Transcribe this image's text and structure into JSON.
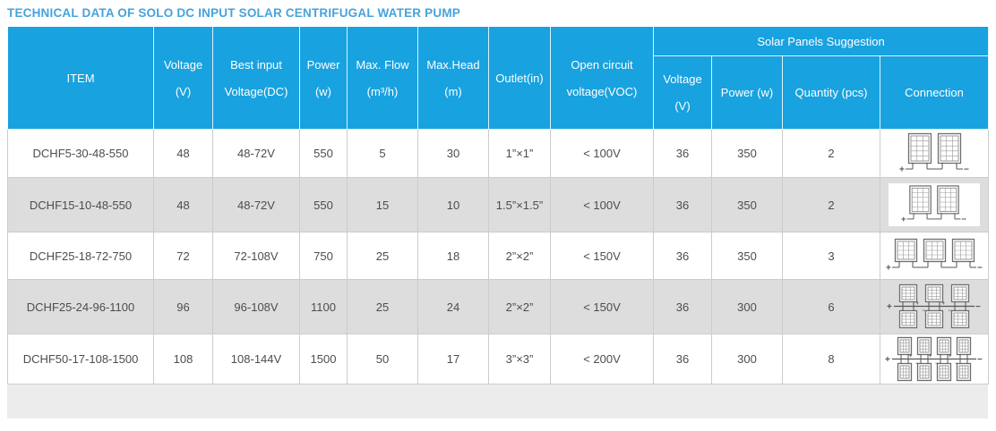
{
  "title": "TECHNICAL DATA OF SOLO DC INPUT SOLAR CENTRIFUGAL WATER PUMP",
  "colors": {
    "title_text": "#46a3db",
    "header_bg": "#18a2df",
    "header_text": "#ffffff",
    "row_alt_bg": "#dddddd",
    "body_text": "#4d4d4d",
    "footer_strip": "#ececec"
  },
  "table": {
    "headers": {
      "item": "ITEM",
      "voltage": {
        "l1": "Voltage",
        "l2": "(V)"
      },
      "best_input": {
        "l1": "Best input",
        "l2": "Voltage(DC)"
      },
      "power": {
        "l1": "Power",
        "l2": "(w)"
      },
      "max_flow": {
        "l1": "Max. Flow",
        "l2": "(m³/h)"
      },
      "max_head": {
        "l1": "Max.Head",
        "l2": "(m)"
      },
      "outlet": "Outlet(in)",
      "open_circuit": {
        "l1": "Open circuit",
        "l2": "voltage(VOC)"
      },
      "solar_group": "Solar Panels Suggestion",
      "sp_voltage": {
        "l1": "Voltage",
        "l2": "(V)"
      },
      "sp_power": "Power (w)",
      "sp_quantity": "Quantity (pcs)",
      "sp_connection": "Connection"
    },
    "rows": [
      {
        "item": "DCHF5-30-48-550",
        "voltage": "48",
        "best_input": "48-72V",
        "power": "550",
        "max_flow": "5",
        "max_head": "30",
        "outlet": "1”×1”",
        "open_circuit": "< 100V",
        "sp_voltage": "36",
        "sp_power": "350",
        "sp_quantity": "2",
        "connection": {
          "icon": "solar-array-2-series-icon",
          "panels": 2,
          "rows": 1,
          "cols": 2,
          "white_bg": false
        }
      },
      {
        "item": "DCHF15-10-48-550",
        "voltage": "48",
        "best_input": "48-72V",
        "power": "550",
        "max_flow": "15",
        "max_head": "10",
        "outlet": "1.5”×1.5”",
        "open_circuit": "< 100V",
        "sp_voltage": "36",
        "sp_power": "350",
        "sp_quantity": "2",
        "connection": {
          "icon": "solar-array-2-series-icon",
          "panels": 2,
          "rows": 1,
          "cols": 2,
          "white_bg": true
        }
      },
      {
        "item": "DCHF25-18-72-750",
        "voltage": "72",
        "best_input": "72-108V",
        "power": "750",
        "max_flow": "25",
        "max_head": "18",
        "outlet": "2”×2”",
        "open_circuit": "< 150V",
        "sp_voltage": "36",
        "sp_power": "350",
        "sp_quantity": "3",
        "connection": {
          "icon": "solar-array-3-series-icon",
          "panels": 3,
          "rows": 1,
          "cols": 3,
          "white_bg": false
        }
      },
      {
        "item": "DCHF25-24-96-1100",
        "voltage": "96",
        "best_input": "96-108V",
        "power": "1100",
        "max_flow": "25",
        "max_head": "24",
        "outlet": "2”×2”",
        "open_circuit": "< 150V",
        "sp_voltage": "36",
        "sp_power": "300",
        "sp_quantity": "6",
        "connection": {
          "icon": "solar-array-6-series-parallel-icon",
          "panels": 6,
          "rows": 2,
          "cols": 3,
          "white_bg": false
        }
      },
      {
        "item": "DCHF50-17-108-1500",
        "voltage": "108",
        "best_input": "108-144V",
        "power": "1500",
        "max_flow": "50",
        "max_head": "17",
        "outlet": "3”×3”",
        "open_circuit": "< 200V",
        "sp_voltage": "36",
        "sp_power": "300",
        "sp_quantity": "8",
        "connection": {
          "icon": "solar-array-8-series-parallel-icon",
          "panels": 8,
          "rows": 2,
          "cols": 4,
          "white_bg": false
        }
      }
    ]
  }
}
